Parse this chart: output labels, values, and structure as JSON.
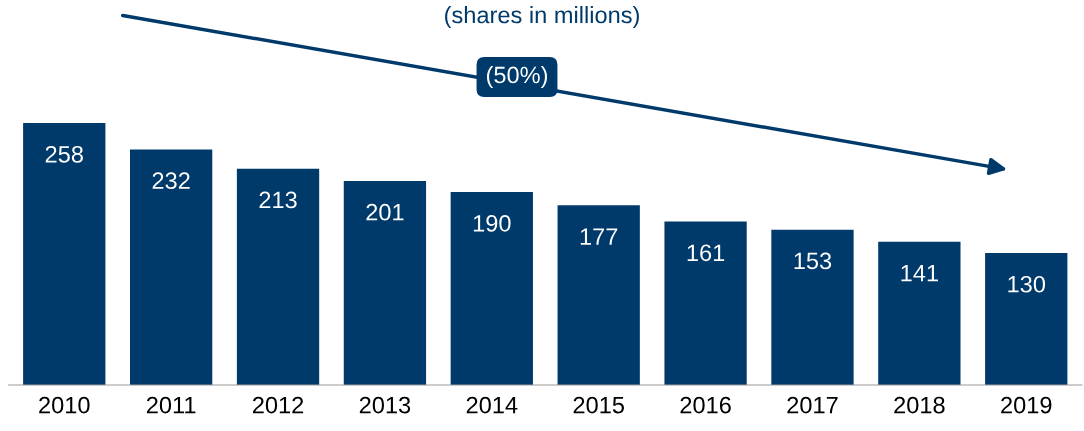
{
  "chart_data": {
    "type": "bar",
    "title": "(shares in millions)",
    "categories": [
      "2010",
      "2011",
      "2012",
      "2013",
      "2014",
      "2015",
      "2016",
      "2017",
      "2018",
      "2019"
    ],
    "values": [
      258,
      232,
      213,
      201,
      190,
      177,
      161,
      153,
      141,
      130
    ],
    "color": "#003a6b",
    "data_labels": true,
    "grid": false,
    "annotations": [
      "(50%)"
    ]
  }
}
